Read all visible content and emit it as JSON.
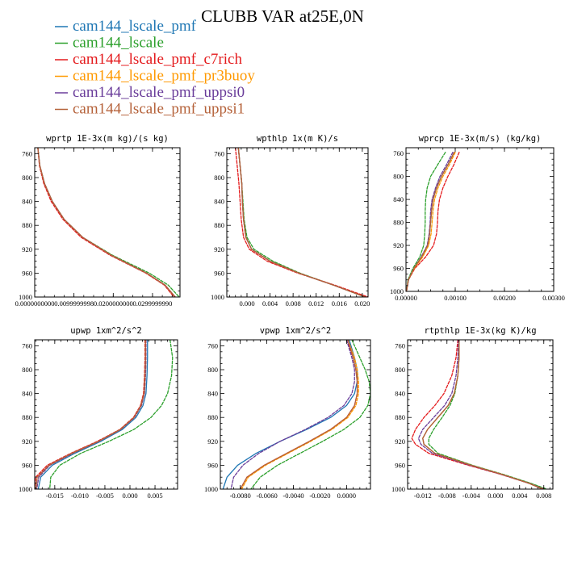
{
  "figure": {
    "title": "CLUBB VAR at25E,0N"
  },
  "legend": [
    {
      "name": "cam144_lscale_pmf",
      "color": "#1f77b4"
    },
    {
      "name": "cam144_lscale",
      "color": "#2ca02c"
    },
    {
      "name": "cam144_lscale_pmf_c7rich",
      "color": "#e41a1c"
    },
    {
      "name": "cam144_lscale_pmf_pr3buoy",
      "color": "#ff9900"
    },
    {
      "name": "cam144_lscale_pmf_uppsi0",
      "color": "#6a3d9a"
    },
    {
      "name": "cam144_lscale_pmf_uppsi1",
      "color": "#b5623a"
    }
  ],
  "chart_data": [
    {
      "type": "line",
      "title": "wprtp  1E-3x(m kg)/(s kg)",
      "xlim": [
        0.0,
        0.037
      ],
      "ylim": [
        1000,
        750
      ],
      "xticks": [
        0.0,
        0.01,
        0.02,
        0.03
      ],
      "xtick_labels": [
        "0.0000000000",
        "0.0099999998",
        "0.0200000000",
        "0.0299999990"
      ],
      "yticks": [
        760,
        800,
        840,
        880,
        920,
        960,
        1000
      ],
      "ytick_labels": [
        "760",
        "800",
        "840",
        "880",
        "920",
        "960",
        "1000"
      ],
      "y": [
        750,
        780,
        810,
        840,
        870,
        900,
        930,
        960,
        980,
        1000
      ],
      "series": [
        {
          "values": [
            0.0008,
            0.0013,
            0.0025,
            0.0045,
            0.0075,
            0.0122,
            0.0195,
            0.0285,
            0.0332,
            0.0358
          ],
          "color": "#1f77b4",
          "dash": "solid"
        },
        {
          "values": [
            0.0008,
            0.0013,
            0.0025,
            0.0045,
            0.0075,
            0.0122,
            0.0198,
            0.0292,
            0.034,
            0.0368
          ],
          "color": "#2ca02c",
          "dash": "dash"
        },
        {
          "values": [
            0.0008,
            0.0012,
            0.0023,
            0.0042,
            0.0072,
            0.0118,
            0.0192,
            0.0283,
            0.033,
            0.0355
          ],
          "color": "#e41a1c",
          "dash": "dash"
        },
        {
          "values": [
            0.0008,
            0.0013,
            0.0025,
            0.0045,
            0.0075,
            0.0122,
            0.0195,
            0.0285,
            0.0332,
            0.0358
          ],
          "color": "#ff9900",
          "dash": "dash"
        },
        {
          "values": [
            0.0008,
            0.0013,
            0.0025,
            0.0045,
            0.0075,
            0.0122,
            0.0195,
            0.0285,
            0.0332,
            0.0358
          ],
          "color": "#6a3d9a",
          "dash": "dash"
        },
        {
          "values": [
            0.0008,
            0.0013,
            0.0025,
            0.0045,
            0.0075,
            0.0122,
            0.0195,
            0.0285,
            0.0332,
            0.0358
          ],
          "color": "#b5623a",
          "dash": "solid"
        }
      ]
    },
    {
      "type": "line",
      "title": "wpthlp  1x(m K)/s",
      "xlim": [
        -0.0035,
        0.021
      ],
      "ylim": [
        1000,
        750
      ],
      "xticks": [
        0.0,
        0.004,
        0.008,
        0.012,
        0.016,
        0.02
      ],
      "xtick_labels": [
        "0.000",
        "0.004",
        "0.008",
        "0.012",
        "0.016",
        "0.020"
      ],
      "yticks": [
        760,
        800,
        840,
        880,
        920,
        960,
        1000
      ],
      "ytick_labels": [
        "760",
        "800",
        "840",
        "880",
        "920",
        "960",
        "1000"
      ],
      "y": [
        750,
        780,
        810,
        840,
        870,
        900,
        920,
        940,
        960,
        980,
        1000
      ],
      "series": [
        {
          "values": [
            -0.0015,
            -0.0012,
            -0.0009,
            -0.0008,
            -0.0006,
            -0.0002,
            0.0008,
            0.004,
            0.009,
            0.015,
            0.0205
          ],
          "color": "#1f77b4",
          "dash": "solid"
        },
        {
          "values": [
            -0.0015,
            -0.0012,
            -0.0009,
            -0.0007,
            -0.0005,
            0.0,
            0.0012,
            0.0045,
            0.0092,
            0.015,
            0.0205
          ],
          "color": "#2ca02c",
          "dash": "dash"
        },
        {
          "values": [
            -0.002,
            -0.0017,
            -0.0014,
            -0.0012,
            -0.001,
            -0.0006,
            0.0004,
            0.0035,
            0.0088,
            0.0152,
            0.021
          ],
          "color": "#e41a1c",
          "dash": "dash"
        },
        {
          "values": [
            -0.0015,
            -0.0012,
            -0.0009,
            -0.0008,
            -0.0006,
            -0.0002,
            0.0008,
            0.004,
            0.009,
            0.015,
            0.0205
          ],
          "color": "#ff9900",
          "dash": "dash"
        },
        {
          "values": [
            -0.0015,
            -0.0012,
            -0.0009,
            -0.0008,
            -0.0006,
            -0.0002,
            0.0008,
            0.004,
            0.009,
            0.015,
            0.0205
          ],
          "color": "#6a3d9a",
          "dash": "dash"
        },
        {
          "values": [
            -0.0015,
            -0.0012,
            -0.0009,
            -0.0008,
            -0.0006,
            -0.0002,
            0.0008,
            0.004,
            0.009,
            0.015,
            0.0205
          ],
          "color": "#b5623a",
          "dash": "solid"
        }
      ]
    },
    {
      "type": "line",
      "title": "wprcp  1E-3x(m/s) (kg/kg)",
      "xlim": [
        0.0,
        0.003
      ],
      "ylim": [
        1000,
        750
      ],
      "xticks": [
        0.0,
        0.001,
        0.002,
        0.003
      ],
      "xtick_labels": [
        "0.00000",
        "0.00100",
        "0.00200",
        "0.00300"
      ],
      "yticks": [
        760,
        800,
        840,
        880,
        920,
        960,
        1000
      ],
      "ytick_labels": [
        "760",
        "800",
        "840",
        "880",
        "920",
        "960",
        "1000"
      ],
      "y": [
        758,
        780,
        800,
        820,
        840,
        860,
        880,
        900,
        920,
        940,
        960,
        980,
        1000
      ],
      "series": [
        {
          "values": [
            0.00098,
            0.00085,
            0.00072,
            0.00062,
            0.00055,
            0.00052,
            0.0005,
            0.00048,
            0.00044,
            0.00032,
            0.00016,
            5e-05,
            1e-05
          ],
          "color": "#1f77b4",
          "dash": "solid"
        },
        {
          "values": [
            0.0008,
            0.00064,
            0.0005,
            0.00043,
            0.0004,
            0.00039,
            0.00039,
            0.00038,
            0.00036,
            0.00028,
            0.00014,
            4e-05,
            1e-05
          ],
          "color": "#2ca02c",
          "dash": "dash"
        },
        {
          "values": [
            0.00108,
            0.00097,
            0.00085,
            0.00075,
            0.00068,
            0.00065,
            0.00064,
            0.00062,
            0.00056,
            0.0004,
            0.00018,
            5e-05,
            1e-05
          ],
          "color": "#e41a1c",
          "dash": "dash"
        },
        {
          "values": [
            0.001,
            0.00088,
            0.00075,
            0.00065,
            0.00058,
            0.00055,
            0.00053,
            0.00051,
            0.00046,
            0.00034,
            0.00017,
            5e-05,
            1e-05
          ],
          "color": "#ff9900",
          "dash": "dash"
        },
        {
          "values": [
            0.00095,
            0.00082,
            0.00069,
            0.0006,
            0.00053,
            0.0005,
            0.00049,
            0.00047,
            0.00043,
            0.00031,
            0.00016,
            5e-05,
            1e-05
          ],
          "color": "#6a3d9a",
          "dash": "dash"
        },
        {
          "values": [
            0.00098,
            0.00085,
            0.00072,
            0.00062,
            0.00055,
            0.00052,
            0.0005,
            0.00048,
            0.00044,
            0.00032,
            0.00016,
            5e-05,
            1e-05
          ],
          "color": "#b5623a",
          "dash": "solid"
        }
      ]
    },
    {
      "type": "line",
      "title": "upwp  1xm^2/s^2",
      "xlim": [
        -0.019,
        0.0095
      ],
      "ylim": [
        1000,
        750
      ],
      "xticks": [
        -0.015,
        -0.01,
        -0.005,
        0.0,
        0.005
      ],
      "xtick_labels": [
        "-0.015",
        "-0.010",
        "-0.005",
        "0.000",
        "0.005"
      ],
      "yticks": [
        760,
        800,
        840,
        880,
        920,
        960,
        1000
      ],
      "ytick_labels": [
        "760",
        "800",
        "840",
        "880",
        "920",
        "960",
        "1000"
      ],
      "y": [
        750,
        780,
        810,
        840,
        860,
        880,
        900,
        920,
        940,
        960,
        980,
        1000
      ],
      "series": [
        {
          "values": [
            0.0035,
            0.0035,
            0.0034,
            0.0032,
            0.0026,
            0.0012,
            -0.0015,
            -0.0058,
            -0.011,
            -0.0155,
            -0.0178,
            -0.0183
          ],
          "color": "#1f77b4",
          "dash": "solid"
        },
        {
          "values": [
            0.008,
            0.0085,
            0.0083,
            0.0075,
            0.0063,
            0.0042,
            0.0008,
            -0.0042,
            -0.0098,
            -0.014,
            -0.0158,
            -0.016
          ],
          "color": "#2ca02c",
          "dash": "dash"
        },
        {
          "values": [
            0.003,
            0.003,
            0.0029,
            0.0027,
            0.0021,
            0.0007,
            -0.002,
            -0.0065,
            -0.0118,
            -0.0165,
            -0.0188,
            -0.019
          ],
          "color": "#e41a1c",
          "dash": "dash"
        },
        {
          "values": [
            0.0032,
            0.0032,
            0.0031,
            0.0029,
            0.0023,
            0.0009,
            -0.0018,
            -0.0062,
            -0.0114,
            -0.016,
            -0.0182,
            -0.0186
          ],
          "color": "#ff9900",
          "dash": "dash"
        },
        {
          "values": [
            0.0032,
            0.0032,
            0.0031,
            0.0029,
            0.0023,
            0.0009,
            -0.0018,
            -0.0062,
            -0.0114,
            -0.016,
            -0.0182,
            -0.0186
          ],
          "color": "#6a3d9a",
          "dash": "dash"
        },
        {
          "values": [
            0.0031,
            0.0031,
            0.003,
            0.0028,
            0.0022,
            0.0008,
            -0.0019,
            -0.0063,
            -0.0116,
            -0.0162,
            -0.0185,
            -0.0188
          ],
          "color": "#b5623a",
          "dash": "solid"
        }
      ]
    },
    {
      "type": "line",
      "title": "vpwp  1xm^2/s^2",
      "xlim": [
        -0.0095,
        0.0018
      ],
      "ylim": [
        1000,
        750
      ],
      "xticks": [
        -0.008,
        -0.006,
        -0.004,
        -0.002,
        0.0
      ],
      "xtick_labels": [
        "-0.0080",
        "-0.0060",
        "-0.0040",
        "-0.0020",
        "0.0000"
      ],
      "yticks": [
        760,
        800,
        840,
        880,
        920,
        960,
        1000
      ],
      "ytick_labels": [
        "760",
        "800",
        "840",
        "880",
        "920",
        "960",
        "1000"
      ],
      "y": [
        750,
        780,
        800,
        820,
        840,
        860,
        880,
        900,
        920,
        940,
        960,
        980,
        1000
      ],
      "series": [
        {
          "values": [
            0.0002,
            0.0006,
            0.0008,
            0.0008,
            0.0006,
            0.0,
            -0.0012,
            -0.003,
            -0.005,
            -0.0068,
            -0.0082,
            -0.009,
            -0.0093
          ],
          "color": "#1f77b4",
          "dash": "solid"
        },
        {
          "values": [
            0.0004,
            0.001,
            0.0014,
            0.0017,
            0.0018,
            0.0016,
            0.001,
            -0.0002,
            -0.0018,
            -0.0035,
            -0.0052,
            -0.0065,
            -0.0072
          ],
          "color": "#2ca02c",
          "dash": "dash"
        },
        {
          "values": [
            0.0,
            0.0005,
            0.0007,
            0.0008,
            0.0008,
            0.0006,
            0.0,
            -0.0012,
            -0.0028,
            -0.0045,
            -0.0062,
            -0.0075,
            -0.008
          ],
          "color": "#e41a1c",
          "dash": "dash"
        },
        {
          "values": [
            0.0001,
            0.0006,
            0.0008,
            0.0009,
            0.0009,
            0.0007,
            0.0001,
            -0.0011,
            -0.0027,
            -0.0044,
            -0.0061,
            -0.0074,
            -0.0079
          ],
          "color": "#ff9900",
          "dash": "dash"
        },
        {
          "values": [
            0.0,
            0.0004,
            0.0006,
            0.0006,
            0.0004,
            -0.0002,
            -0.0014,
            -0.0031,
            -0.005,
            -0.0066,
            -0.0078,
            -0.0085,
            -0.0087
          ],
          "color": "#6a3d9a",
          "dash": "dash"
        },
        {
          "values": [
            0.0001,
            0.0005,
            0.0007,
            0.0008,
            0.0008,
            0.0006,
            0.0,
            -0.0012,
            -0.0028,
            -0.0045,
            -0.0062,
            -0.0075,
            -0.008
          ],
          "color": "#b5623a",
          "dash": "solid"
        }
      ]
    },
    {
      "type": "line",
      "title": "rtpthlp  1E-3x(kg K)/kg",
      "xlim": [
        -0.0145,
        0.0095
      ],
      "ylim": [
        1000,
        750
      ],
      "xticks": [
        -0.012,
        -0.008,
        -0.004,
        0.0,
        0.004,
        0.008
      ],
      "xtick_labels": [
        "-0.012",
        "-0.008",
        "-0.004",
        "0.000",
        "0.004",
        "0.008"
      ],
      "yticks": [
        760,
        800,
        840,
        880,
        920,
        960,
        1000
      ],
      "ytick_labels": [
        "760",
        "800",
        "840",
        "880",
        "920",
        "960",
        "1000"
      ],
      "y": [
        750,
        780,
        810,
        840,
        860,
        880,
        900,
        915,
        925,
        940,
        960,
        975,
        990,
        1000
      ],
      "series": [
        {
          "values": [
            -0.006,
            -0.006,
            -0.0062,
            -0.0068,
            -0.0078,
            -0.0095,
            -0.0112,
            -0.012,
            -0.0118,
            -0.01,
            -0.004,
            0.001,
            0.0055,
            0.0078
          ],
          "color": "#1f77b4",
          "dash": "solid"
        },
        {
          "values": [
            -0.006,
            -0.006,
            -0.0062,
            -0.0067,
            -0.0075,
            -0.0088,
            -0.0102,
            -0.011,
            -0.011,
            -0.0095,
            -0.0038,
            0.0012,
            0.0058,
            0.0085
          ],
          "color": "#2ca02c",
          "dash": "dash"
        },
        {
          "values": [
            -0.0062,
            -0.0065,
            -0.0072,
            -0.0085,
            -0.01,
            -0.0118,
            -0.0132,
            -0.0138,
            -0.0132,
            -0.011,
            -0.0045,
            0.0008,
            0.0055,
            0.008
          ],
          "color": "#e41a1c",
          "dash": "dash"
        },
        {
          "values": [
            -0.006,
            -0.006,
            -0.0062,
            -0.0068,
            -0.0078,
            -0.0095,
            -0.0112,
            -0.012,
            -0.0118,
            -0.01,
            -0.004,
            0.001,
            0.0055,
            0.0078
          ],
          "color": "#ff9900",
          "dash": "dash"
        },
        {
          "values": [
            -0.0061,
            -0.0062,
            -0.0065,
            -0.0072,
            -0.0084,
            -0.0102,
            -0.012,
            -0.0127,
            -0.0123,
            -0.0104,
            -0.0042,
            0.0009,
            0.0055,
            0.0079
          ],
          "color": "#6a3d9a",
          "dash": "dash"
        },
        {
          "values": [
            -0.006,
            -0.006,
            -0.0062,
            -0.0068,
            -0.0078,
            -0.0095,
            -0.0112,
            -0.012,
            -0.0118,
            -0.01,
            -0.004,
            0.001,
            0.0055,
            0.0078
          ],
          "color": "#b5623a",
          "dash": "solid"
        }
      ]
    }
  ]
}
